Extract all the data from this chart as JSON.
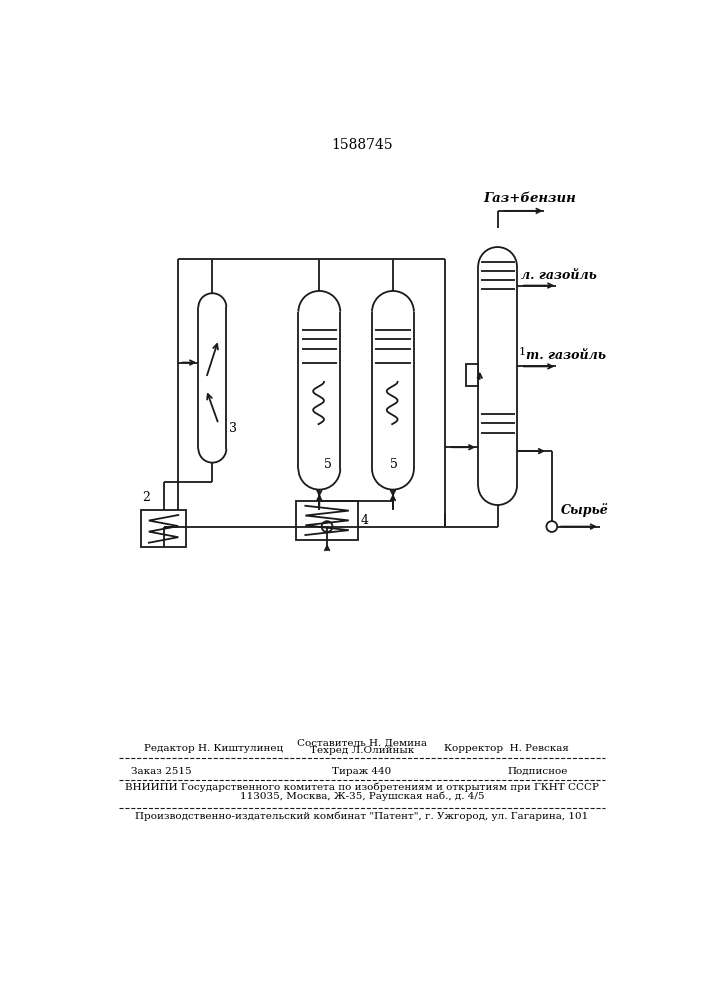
{
  "title": "1588745",
  "lc": "#1a1a1a",
  "lw": 1.3,
  "labels": {
    "gaz_benzin": "Газ+бензин",
    "l_gazoil": "л. газойль",
    "t_gazoil": "т. газойль",
    "num1": "1",
    "syrye": "Сырьё",
    "num2": "2",
    "num3": "3",
    "num4": "4",
    "num5a": "5",
    "num5b": "5"
  },
  "footer": {
    "sestavitel": "Составитель Н. Демина",
    "tehred": "Техред Л.Олийнык",
    "redaktor": "Редактор Н. Киштулинец",
    "korrektor": "Корректор  Н. Ревская",
    "zakaz": "Заказ 2515",
    "tirazh": "Тираж 440",
    "podpisnoe": "Подписное",
    "vniip1": "ВНИИПИ Государственного комитета по изобретениям и открытиям при ГКНТ СССР",
    "vniip2": "113035, Москва, Ж-35, Раушская наб., д. 4/5",
    "patent": "Производственно-издательский комбинат \"Патент\", г. Ужгород, ул. Гагарина, 101"
  }
}
